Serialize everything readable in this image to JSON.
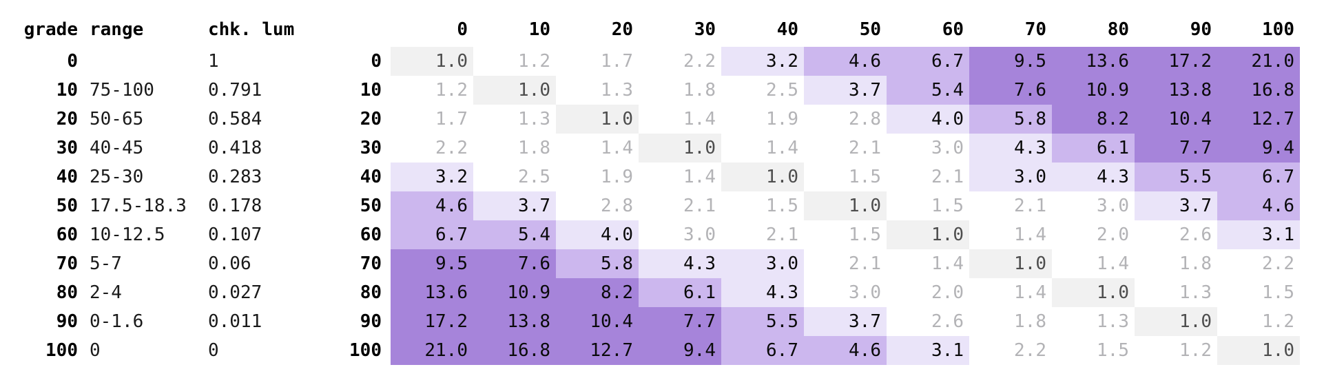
{
  "left_table": {
    "header": {
      "grade": "grade",
      "range": "range",
      "lum": "chk. lum"
    },
    "rows": [
      {
        "grade": "0",
        "range": "",
        "lum": "1"
      },
      {
        "grade": "10",
        "range": "75-100",
        "lum": "0.791"
      },
      {
        "grade": "20",
        "range": "50-65",
        "lum": "0.584"
      },
      {
        "grade": "30",
        "range": "40-45",
        "lum": "0.418"
      },
      {
        "grade": "40",
        "range": "25-30",
        "lum": "0.283"
      },
      {
        "grade": "50",
        "range": "17.5-18.3",
        "lum": "0.178"
      },
      {
        "grade": "60",
        "range": "10-12.5",
        "lum": "0.107"
      },
      {
        "grade": "70",
        "range": "5-7",
        "lum": "0.06"
      },
      {
        "grade": "80",
        "range": "2-4",
        "lum": "0.027"
      },
      {
        "grade": "90",
        "range": "0-1.6",
        "lum": "0.011"
      },
      {
        "grade": "100",
        "range": "0",
        "lum": "0"
      }
    ]
  },
  "matrix": {
    "col_headers": [
      "0",
      "10",
      "20",
      "30",
      "40",
      "50",
      "60",
      "70",
      "80",
      "90",
      "100"
    ],
    "row_headers": [
      "0",
      "10",
      "20",
      "30",
      "40",
      "50",
      "60",
      "70",
      "80",
      "90",
      "100"
    ],
    "bands": [
      "sffflmmhhhh",
      "fsffflmhhhh",
      "ffsffflmhhh",
      "fffsffflmhh",
      "lfffsffllmm",
      "mlfffsffflm",
      "mmlfffsfffl",
      "hhmllffsfff",
      "hhhmlfffsff",
      "hhhhmlfffsf",
      "hhhhmmlfffs"
    ]
  },
  "colors": {
    "diagonal_bg": "#f1f1f1",
    "diagonal_text": "#4d4d4d",
    "fail_text": "#b3b3b6",
    "aa_large_bg": "#eae4f9",
    "aa_bg": "#ccb7ee",
    "aaa_bg": "#a684da",
    "pass_text": "#0a0a0a",
    "header_text": "#000000"
  },
  "chart_data": {
    "type": "heatmap",
    "title": "",
    "xlabel": "",
    "ylabel": "",
    "x_categories": [
      0,
      10,
      20,
      30,
      40,
      50,
      60,
      70,
      80,
      90,
      100
    ],
    "y_categories": [
      0,
      10,
      20,
      30,
      40,
      50,
      60,
      70,
      80,
      90,
      100
    ],
    "values": [
      [
        1.0,
        1.2,
        1.7,
        2.2,
        3.2,
        4.6,
        6.7,
        9.5,
        13.6,
        17.2,
        21.0
      ],
      [
        1.2,
        1.0,
        1.3,
        1.8,
        2.5,
        3.7,
        5.4,
        7.6,
        10.9,
        13.8,
        16.8
      ],
      [
        1.7,
        1.3,
        1.0,
        1.4,
        1.9,
        2.8,
        4.0,
        5.8,
        8.2,
        10.4,
        12.7
      ],
      [
        2.2,
        1.8,
        1.4,
        1.0,
        1.4,
        2.1,
        3.0,
        4.3,
        6.1,
        7.7,
        9.4
      ],
      [
        3.2,
        2.5,
        1.9,
        1.4,
        1.0,
        1.5,
        2.1,
        3.0,
        4.3,
        5.5,
        6.7
      ],
      [
        4.6,
        3.7,
        2.8,
        2.1,
        1.5,
        1.0,
        1.5,
        2.1,
        3.0,
        3.7,
        4.6
      ],
      [
        6.7,
        5.4,
        4.0,
        3.0,
        2.1,
        1.5,
        1.0,
        1.4,
        2.0,
        2.6,
        3.1
      ],
      [
        9.5,
        7.6,
        5.8,
        4.3,
        3.0,
        2.1,
        1.4,
        1.0,
        1.4,
        1.8,
        2.2
      ],
      [
        13.6,
        10.9,
        8.2,
        6.1,
        4.3,
        3.0,
        2.0,
        1.4,
        1.0,
        1.3,
        1.5
      ],
      [
        17.2,
        13.8,
        10.4,
        7.7,
        5.5,
        3.7,
        2.6,
        1.8,
        1.3,
        1.0,
        1.2
      ],
      [
        21.0,
        16.8,
        12.7,
        9.4,
        6.7,
        4.6,
        3.1,
        2.2,
        1.5,
        1.2,
        1.0
      ]
    ],
    "grades": [
      0,
      10,
      20,
      30,
      40,
      50,
      60,
      70,
      80,
      90,
      100
    ],
    "grade_ranges": [
      "",
      "75-100",
      "50-65",
      "40-45",
      "25-30",
      "17.5-18.3",
      "10-12.5",
      "5-7",
      "2-4",
      "0-1.6",
      "0"
    ],
    "checker_luminance": [
      1,
      0.791,
      0.584,
      0.418,
      0.283,
      0.178,
      0.107,
      0.06,
      0.027,
      0.011,
      0
    ],
    "legend": {
      "self": "diagonal 1.0 (same grade) - gray",
      "fail_below_3": "white background, gray text",
      "band_3_to_4.5": "light purple",
      "band_4.5_to_7": "medium purple",
      "band_7_and_up": "dark purple"
    },
    "grid": false,
    "legend_position": "none"
  }
}
